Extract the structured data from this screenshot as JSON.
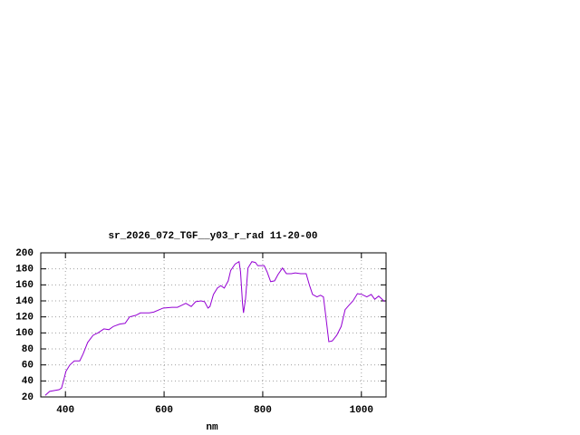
{
  "chart_data": {
    "type": "line",
    "title": "sr_2026_072_TGF__y03_r_rad 11-20-00",
    "xlabel": "nm",
    "x": [
      359,
      368,
      378,
      387,
      392,
      396,
      401,
      409,
      418,
      429,
      436,
      445,
      456,
      466,
      478,
      488,
      497,
      510,
      521,
      530,
      543,
      552,
      570,
      579,
      598,
      616,
      627,
      634,
      644,
      655,
      664,
      675,
      682,
      689,
      693,
      700,
      708,
      715,
      722,
      730,
      735,
      744,
      752,
      755,
      759,
      761,
      765,
      770,
      778,
      785,
      790,
      803,
      809,
      816,
      824,
      831,
      840,
      848,
      858,
      866,
      877,
      888,
      895,
      901,
      910,
      917,
      923,
      928,
      934,
      941,
      950,
      959,
      967,
      974,
      983,
      992,
      1001,
      1011,
      1020,
      1027,
      1035,
      1042,
      1047
    ],
    "values": [
      22,
      27,
      28,
      29,
      31,
      40,
      52,
      60,
      65,
      65,
      74,
      88,
      97,
      100,
      105,
      104,
      108,
      111,
      112,
      120,
      122,
      125,
      125,
      126,
      131,
      132,
      132,
      134,
      137,
      133,
      139,
      140,
      139,
      131,
      133,
      148,
      156,
      159,
      156,
      165,
      178,
      186,
      189,
      176,
      137,
      125,
      142,
      181,
      189,
      188,
      184,
      184,
      176,
      164,
      165,
      173,
      181,
      174,
      174,
      175,
      174,
      174,
      159,
      148,
      145,
      147,
      145,
      120,
      89,
      90,
      97,
      108,
      129,
      134,
      140,
      149,
      148,
      145,
      148,
      142,
      146,
      142,
      139
    ],
    "color": "#9400d3",
    "xlim": [
      350,
      1050
    ],
    "ylim": [
      20,
      200
    ],
    "xticks": [
      400,
      600,
      800,
      1000
    ],
    "yticks": [
      20,
      40,
      60,
      80,
      100,
      120,
      140,
      160,
      180,
      200
    ],
    "grid": true
  }
}
